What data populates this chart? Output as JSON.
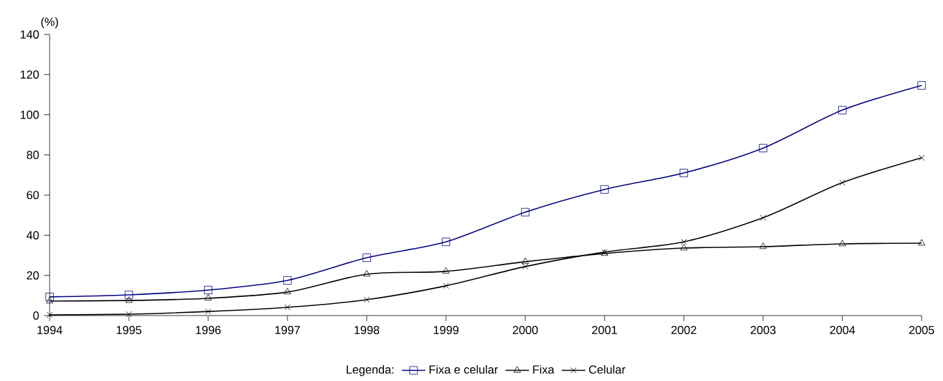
{
  "chart_data": {
    "type": "line",
    "ylabel": "(%)",
    "legend_title": "Legenda:",
    "legend": "bottom",
    "x": [
      1994,
      1995,
      1996,
      1997,
      1998,
      1999,
      2000,
      2001,
      2002,
      2003,
      2004,
      2005
    ],
    "xlim": [
      1994,
      2005
    ],
    "xticks": [
      1994,
      1995,
      1996,
      1997,
      1998,
      1999,
      2000,
      2001,
      2002,
      2003,
      2004,
      2005
    ],
    "ylim": [
      0,
      140
    ],
    "yticks": [
      0,
      20,
      40,
      60,
      80,
      100,
      120,
      140
    ],
    "grid": false,
    "series": [
      {
        "name": "Fixa e celular",
        "color": "#000080",
        "marker": "square",
        "values": [
          9.3,
          10.3,
          12.7,
          17.5,
          28.8,
          36.7,
          51.5,
          62.8,
          71,
          83.4,
          102.3,
          114.6
        ]
      },
      {
        "name": "Fixa",
        "color": "#000000",
        "marker": "triangle",
        "values": [
          7.2,
          7.5,
          8.6,
          11.7,
          20.6,
          22,
          26.8,
          30.9,
          33.6,
          34.3,
          35.7,
          36
        ]
      },
      {
        "name": "Celular",
        "color": "#000000",
        "marker": "cross",
        "values": [
          0.3,
          0.7,
          2,
          4.1,
          7.9,
          14.8,
          24.4,
          31.6,
          36.7,
          48.7,
          66.2,
          78.6
        ]
      }
    ]
  }
}
